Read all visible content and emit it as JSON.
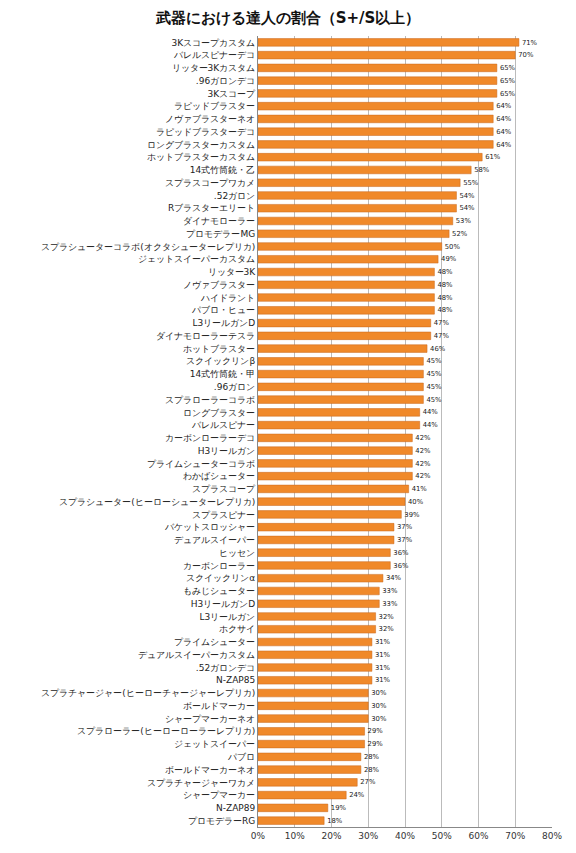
{
  "chart_data": {
    "type": "bar",
    "orientation": "horizontal",
    "title": "武器における達人の割合（S+/S以上）",
    "categories": [
      "3Kスコープカスタム",
      "バレルスピナーデコ",
      "リッター3Kカスタム",
      ".96ガロンデコ",
      "3Kスコープ",
      "ラピッドブラスター",
      "ノヴァブラスターネオ",
      "ラピッドブラスターデコ",
      "ロングブラスターカスタム",
      "ホットブラスターカスタム",
      "14式竹筒銃・乙",
      "スプラスコープワカメ",
      ".52ガロン",
      "Rブラスターエリート",
      "ダイナモローラー",
      "プロモデラーMG",
      "スプラシューターコラボ(オクタシューターレプリカ)",
      "ジェットスイーパーカスタム",
      "リッター3K",
      "ノヴァブラスター",
      "ハイドラント",
      "パブロ・ヒュー",
      "L3リールガンD",
      "ダイナモローラーテスラ",
      "ホットブラスター",
      "スクイックリンβ",
      "14式竹筒銃・甲",
      ".96ガロン",
      "スプラローラーコラボ",
      "ロングブラスター",
      "バレルスピナー",
      "カーボンローラーデコ",
      "H3リールガン",
      "プライムシューターコラボ",
      "わかばシューター",
      "スプラスコープ",
      "スプラシューター(ヒーローシューターレプリカ)",
      "スプラスピナー",
      "バケットスロッシャー",
      "デュアルスイーパー",
      "ヒッセン",
      "カーボンローラー",
      "スクイックリンα",
      "もみじシューター",
      "H3リールガンD",
      "L3リールガン",
      "ホクサイ",
      "プライムシューター",
      "デュアルスイーパーカスタム",
      ".52ガロンデコ",
      "N-ZAP85",
      "スプラチャージャー(ヒーローチャージャーレプリカ)",
      "ボールドマーカー",
      "シャープマーカーネオ",
      "スプラローラー(ヒーローローラーレプリカ)",
      "ジェットスイーパー",
      "パブロ",
      "ボールドマーカーネオ",
      "スプラチャージャーワカメ",
      "シャープマーカー",
      "N-ZAP89",
      "プロモデラーRG"
    ],
    "values": [
      71,
      70,
      65,
      65,
      65,
      64,
      64,
      64,
      64,
      61,
      58,
      55,
      54,
      54,
      53,
      52,
      50,
      49,
      48,
      48,
      48,
      48,
      47,
      47,
      46,
      45,
      45,
      45,
      45,
      44,
      44,
      42,
      42,
      42,
      42,
      41,
      40,
      39,
      37,
      37,
      36,
      36,
      34,
      33,
      33,
      32,
      32,
      31,
      31,
      31,
      31,
      30,
      30,
      30,
      29,
      29,
      28,
      28,
      27,
      24,
      19,
      18
    ],
    "value_labels": [
      "71%",
      "70%",
      "65%",
      "65%",
      "65%",
      "64%",
      "64%",
      "64%",
      "64%",
      "61%",
      "58%",
      "55%",
      "54%",
      "54%",
      "53%",
      "52%",
      "50%",
      "49%",
      "48%",
      "48%",
      "48%",
      "48%",
      "47%",
      "47%",
      "46%",
      "45%",
      "45%",
      "45%",
      "45%",
      "44%",
      "44%",
      "42%",
      "42%",
      "42%",
      "42%",
      "41%",
      "40%",
      "39%",
      "37%",
      "37%",
      "36%",
      "36%",
      "34%",
      "33%",
      "33%",
      "32%",
      "32%",
      "31%",
      "31%",
      "31%",
      "31%",
      "30%",
      "30%",
      "30%",
      "29%",
      "29%",
      "28%",
      "28%",
      "27%",
      "24%",
      "19%",
      "18%"
    ],
    "data_labels": true,
    "color": "#f0892a",
    "xlim": [
      0,
      80
    ],
    "xticks": [
      {
        "value": 0,
        "label": "0%"
      },
      {
        "value": 10,
        "label": "10%"
      },
      {
        "value": 20,
        "label": "20%"
      },
      {
        "value": 30,
        "label": "30%"
      },
      {
        "value": 40,
        "label": "40%"
      },
      {
        "value": 50,
        "label": "50%"
      },
      {
        "value": 60,
        "label": "60%"
      },
      {
        "value": 70,
        "label": "70%"
      },
      {
        "value": 80,
        "label": "80%"
      }
    ],
    "grid": true
  }
}
